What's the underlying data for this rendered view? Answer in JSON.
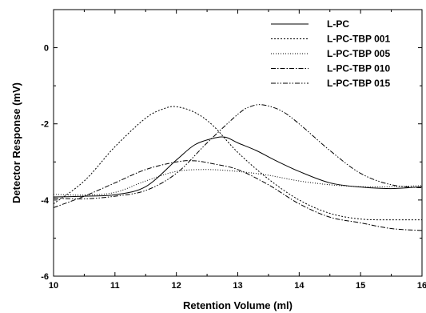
{
  "chart_data": {
    "type": "line",
    "title": "",
    "xlabel": "Retention Volume (ml)",
    "ylabel": "Detector Response (mV)",
    "xlim": [
      10,
      16
    ],
    "ylim": [
      -6,
      1
    ],
    "xticks": [
      10,
      11,
      12,
      13,
      14,
      15,
      16
    ],
    "yticks": [
      -6,
      -4,
      -2,
      0
    ],
    "grid": false,
    "legend_position": "top-right",
    "series": [
      {
        "name": "L-PC",
        "dash": "solid",
        "x": [
          10,
          10.5,
          11,
          11.5,
          12,
          12.3,
          12.6,
          12.8,
          13,
          13.3,
          13.6,
          14,
          14.5,
          15,
          15.5,
          16
        ],
        "y": [
          -3.92,
          -3.9,
          -3.86,
          -3.65,
          -2.95,
          -2.55,
          -2.38,
          -2.35,
          -2.5,
          -2.7,
          -2.95,
          -3.25,
          -3.55,
          -3.66,
          -3.7,
          -3.65
        ]
      },
      {
        "name": "L-PC-TBP 001",
        "dash": "dot",
        "x": [
          10,
          10.5,
          11,
          11.5,
          11.8,
          12,
          12.3,
          12.6,
          13,
          13.5,
          14,
          14.5,
          15,
          15.5,
          16
        ],
        "y": [
          -4.1,
          -3.5,
          -2.6,
          -1.85,
          -1.6,
          -1.55,
          -1.7,
          -2.05,
          -2.75,
          -3.45,
          -4.0,
          -4.35,
          -4.5,
          -4.52,
          -4.52
        ]
      },
      {
        "name": "L-PC-TBP 005",
        "dash": "fine-dot",
        "x": [
          10,
          10.5,
          11,
          11.5,
          12,
          12.5,
          13,
          13.5,
          14,
          14.5,
          15,
          15.5,
          16
        ],
        "y": [
          -3.85,
          -3.87,
          -3.8,
          -3.5,
          -3.25,
          -3.2,
          -3.25,
          -3.35,
          -3.5,
          -3.6,
          -3.65,
          -3.65,
          -3.62
        ]
      },
      {
        "name": "L-PC-TBP 010",
        "dash": "dash-dot",
        "x": [
          10,
          10.5,
          11,
          11.5,
          12,
          12.3,
          12.6,
          13,
          13.5,
          14,
          14.5,
          15,
          15.5,
          16
        ],
        "y": [
          -4.2,
          -3.9,
          -3.55,
          -3.2,
          -3.0,
          -2.97,
          -3.05,
          -3.2,
          -3.6,
          -4.1,
          -4.45,
          -4.6,
          -4.75,
          -4.8
        ]
      },
      {
        "name": "L-PC-TBP 015",
        "dash": "dash-dot-dot",
        "x": [
          10,
          10.5,
          11,
          11.5,
          12,
          12.5,
          13,
          13.2,
          13.4,
          13.7,
          14,
          14.5,
          15,
          15.5,
          16
        ],
        "y": [
          -3.95,
          -3.97,
          -3.9,
          -3.75,
          -3.3,
          -2.5,
          -1.75,
          -1.55,
          -1.5,
          -1.65,
          -2.0,
          -2.7,
          -3.3,
          -3.6,
          -3.68
        ]
      }
    ]
  }
}
